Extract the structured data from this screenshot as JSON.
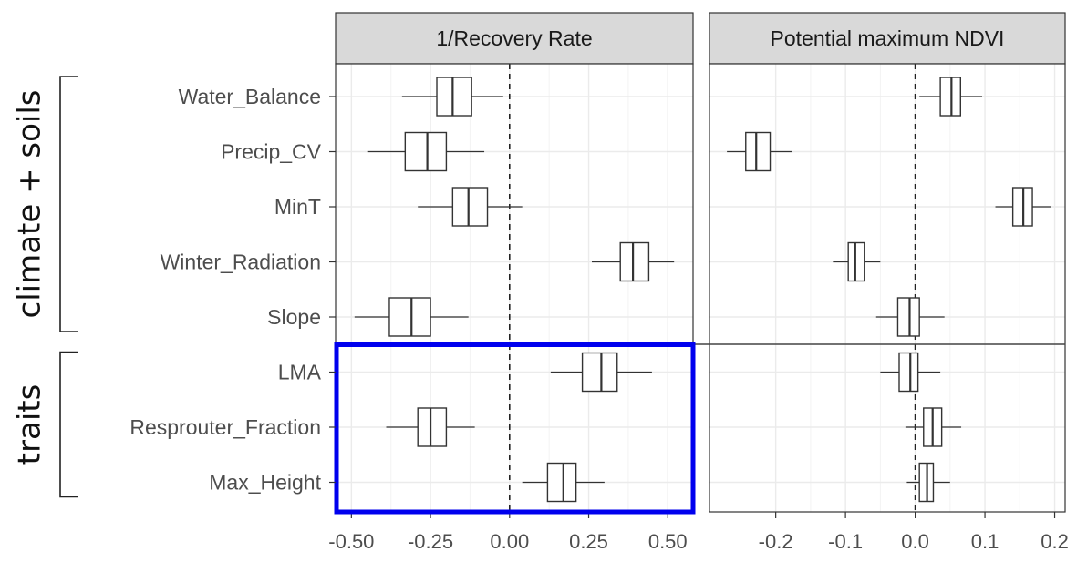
{
  "chart_data": [
    {
      "type": "box",
      "panel_title": "1/Recovery Rate",
      "categories": [
        "Water_Balance",
        "Precip_CV",
        "MinT",
        "Winter_Radiation",
        "Slope",
        "LMA",
        "Resprouter_Fraction",
        "Max_Height"
      ],
      "xlim": [
        -0.55,
        0.58
      ],
      "x_ticks": [
        "-0.50",
        "-0.25",
        "0.00",
        "0.25",
        "0.50"
      ],
      "x_tick_values": [
        -0.5,
        -0.25,
        0.0,
        0.25,
        0.5
      ],
      "reference_line": 0,
      "grid": true,
      "boxes": [
        {
          "category": "Water_Balance",
          "whisker_low": -0.34,
          "q1": -0.23,
          "median": -0.18,
          "q3": -0.12,
          "whisker_high": -0.02
        },
        {
          "category": "Precip_CV",
          "whisker_low": -0.45,
          "q1": -0.33,
          "median": -0.26,
          "q3": -0.2,
          "whisker_high": -0.08
        },
        {
          "category": "MinT",
          "whisker_low": -0.29,
          "q1": -0.18,
          "median": -0.13,
          "q3": -0.07,
          "whisker_high": 0.04
        },
        {
          "category": "Winter_Radiation",
          "whisker_low": 0.26,
          "q1": 0.35,
          "median": 0.39,
          "q3": 0.44,
          "whisker_high": 0.52
        },
        {
          "category": "Slope",
          "whisker_low": -0.49,
          "q1": -0.38,
          "median": -0.31,
          "q3": -0.25,
          "whisker_high": -0.13
        },
        {
          "category": "LMA",
          "whisker_low": 0.13,
          "q1": 0.23,
          "median": 0.29,
          "q3": 0.34,
          "whisker_high": 0.45
        },
        {
          "category": "Resprouter_Fraction",
          "whisker_low": -0.39,
          "q1": -0.29,
          "median": -0.25,
          "q3": -0.2,
          "whisker_high": -0.11
        },
        {
          "category": "Max_Height",
          "whisker_low": 0.04,
          "q1": 0.12,
          "median": 0.17,
          "q3": 0.21,
          "whisker_high": 0.3
        }
      ]
    },
    {
      "type": "box",
      "panel_title": "Potential maximum NDVI",
      "categories": [
        "Water_Balance",
        "Precip_CV",
        "MinT",
        "Winter_Radiation",
        "Slope",
        "LMA",
        "Resprouter_Fraction",
        "Max_Height"
      ],
      "xlim": [
        -0.295,
        0.215
      ],
      "x_ticks": [
        "-0.2",
        "-0.1",
        "0.0",
        "0.1",
        "0.2"
      ],
      "x_tick_values": [
        -0.2,
        -0.1,
        0.0,
        0.1,
        0.2
      ],
      "reference_line": 0,
      "grid": true,
      "boxes": [
        {
          "category": "Water_Balance",
          "whisker_low": 0.006,
          "q1": 0.036,
          "median": 0.052,
          "q3": 0.065,
          "whisker_high": 0.096
        },
        {
          "category": "Precip_CV",
          "whisker_low": -0.27,
          "q1": -0.243,
          "median": -0.228,
          "q3": -0.208,
          "whisker_high": -0.177
        },
        {
          "category": "MinT",
          "whisker_low": 0.115,
          "q1": 0.14,
          "median": 0.155,
          "q3": 0.168,
          "whisker_high": 0.195
        },
        {
          "category": "Winter_Radiation",
          "whisker_low": -0.118,
          "q1": -0.096,
          "median": -0.086,
          "q3": -0.073,
          "whisker_high": -0.05
        },
        {
          "category": "Slope",
          "whisker_low": -0.056,
          "q1": -0.025,
          "median": -0.008,
          "q3": 0.006,
          "whisker_high": 0.042
        },
        {
          "category": "LMA",
          "whisker_low": -0.05,
          "q1": -0.023,
          "median": -0.007,
          "q3": 0.004,
          "whisker_high": 0.036
        },
        {
          "category": "Resprouter_Fraction",
          "whisker_low": -0.014,
          "q1": 0.012,
          "median": 0.025,
          "q3": 0.038,
          "whisker_high": 0.066
        },
        {
          "category": "Max_Height",
          "whisker_low": -0.012,
          "q1": 0.006,
          "median": 0.017,
          "q3": 0.026,
          "whisker_high": 0.05
        }
      ]
    }
  ],
  "groups": [
    {
      "label": "climate + soils",
      "categories": [
        "Water_Balance",
        "Precip_CV",
        "MinT",
        "Winter_Radiation",
        "Slope"
      ]
    },
    {
      "label": "traits",
      "categories": [
        "LMA",
        "Resprouter_Fraction",
        "Max_Height"
      ]
    }
  ],
  "highlight": {
    "color": "#0000ee",
    "panel": "1/Recovery Rate",
    "categories": [
      "LMA",
      "Resprouter_Fraction",
      "Max_Height"
    ]
  },
  "colors": {
    "strip_fill": "#d9d9d9",
    "panel_border": "#333333",
    "grid": "#ebebeb",
    "box_stroke": "#333333"
  }
}
